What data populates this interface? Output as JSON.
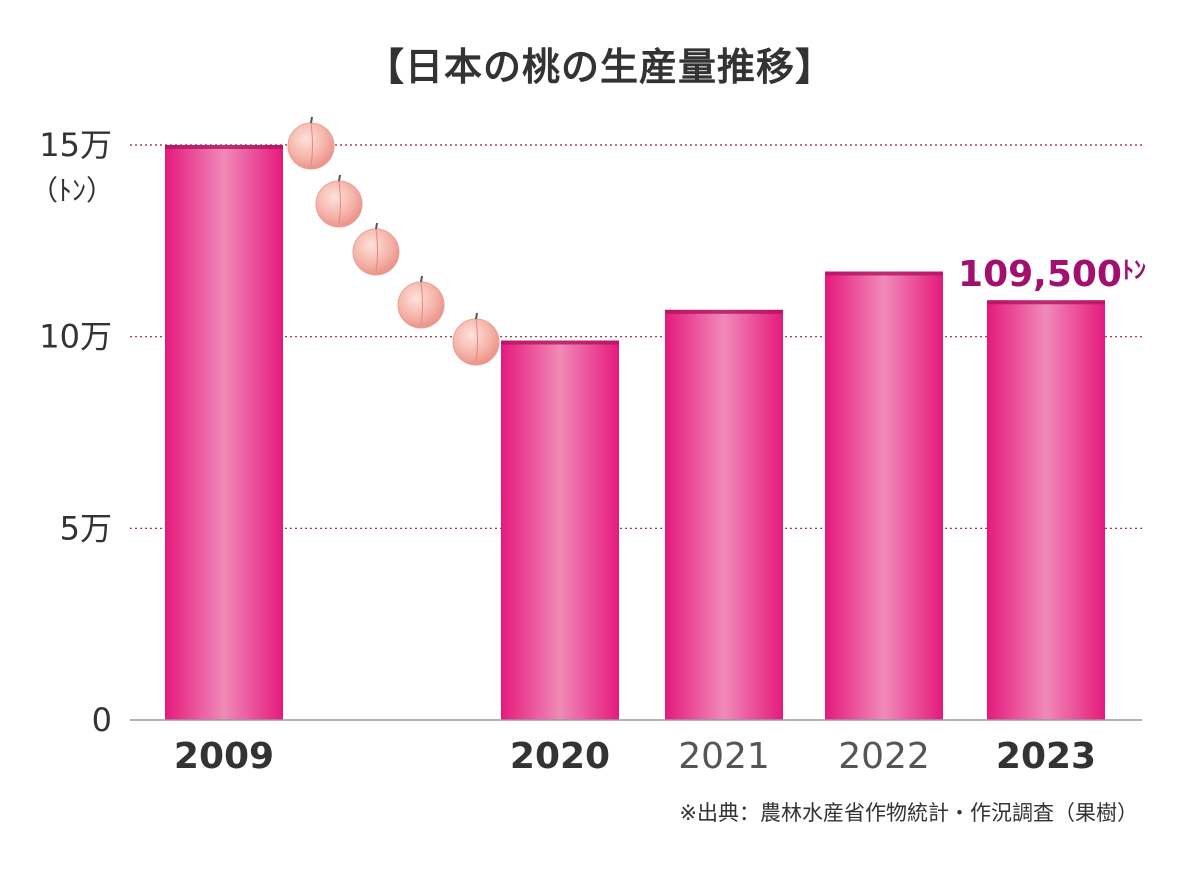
{
  "chart_data": {
    "type": "bar",
    "title": "【日本の桃の生産量推移】",
    "categories": [
      "2009",
      "2020",
      "2021",
      "2022",
      "2023"
    ],
    "series": [
      {
        "name": "生産量",
        "values": [
          150000,
          99000,
          107000,
          117000,
          109500
        ]
      }
    ],
    "emphasized_categories": [
      "2009",
      "2020",
      "2023"
    ],
    "ylim": [
      0,
      150000
    ],
    "y_ticks": [
      {
        "value": 0,
        "label": "0"
      },
      {
        "value": 50000,
        "label": "5万"
      },
      {
        "value": 100000,
        "label": "10万"
      },
      {
        "value": 150000,
        "label": "15万"
      }
    ],
    "y_unit": "（ﾄﾝ）",
    "annotation": {
      "category": "2023",
      "text": "109,500",
      "unit": "ﾄﾝ"
    },
    "source": "※出典：農林水産省作物統計・作況調査（果樹）",
    "colors": {
      "bar": "#e5197e",
      "bar_highlight": "#f08ab8",
      "gridline": "#9b2335",
      "label": "#a1106e",
      "peach": "#f2a7a0"
    },
    "grid": "dotted-horizontal",
    "decoration": "peach-icons-descending"
  }
}
